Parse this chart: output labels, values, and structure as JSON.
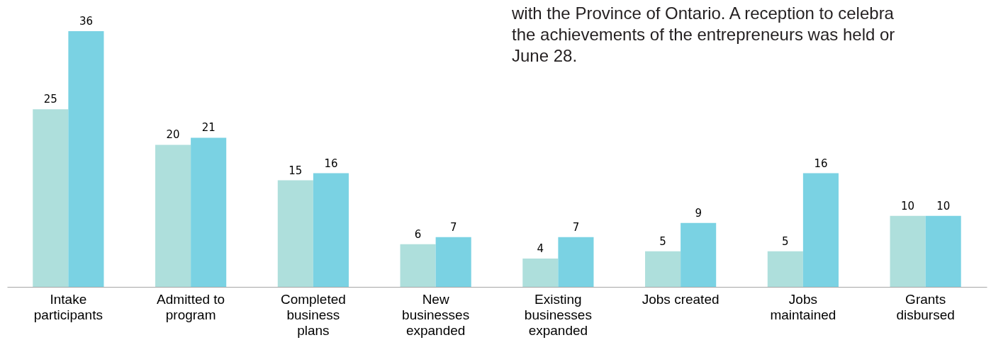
{
  "chart_data": {
    "type": "bar",
    "categories": [
      "Intake participants",
      "Admitted to program",
      "Completed business plans",
      "New businesses expanded",
      "Existing businesses expanded",
      "Jobs created",
      "Jobs maintained",
      "Grants disbursed"
    ],
    "series": [
      {
        "color": "#aedfdc",
        "values": [
          25,
          20,
          15,
          6,
          4,
          5,
          5,
          10
        ]
      },
      {
        "color": "#7ad2e3",
        "values": [
          36,
          21,
          16,
          7,
          7,
          9,
          16,
          10
        ]
      }
    ],
    "data_labels": true,
    "legend": false,
    "grid": false,
    "annotations": [
      "with the Province of Ontario. A reception to celebra",
      "the achievements of the entrepreneurs was held or",
      "June 28."
    ]
  }
}
